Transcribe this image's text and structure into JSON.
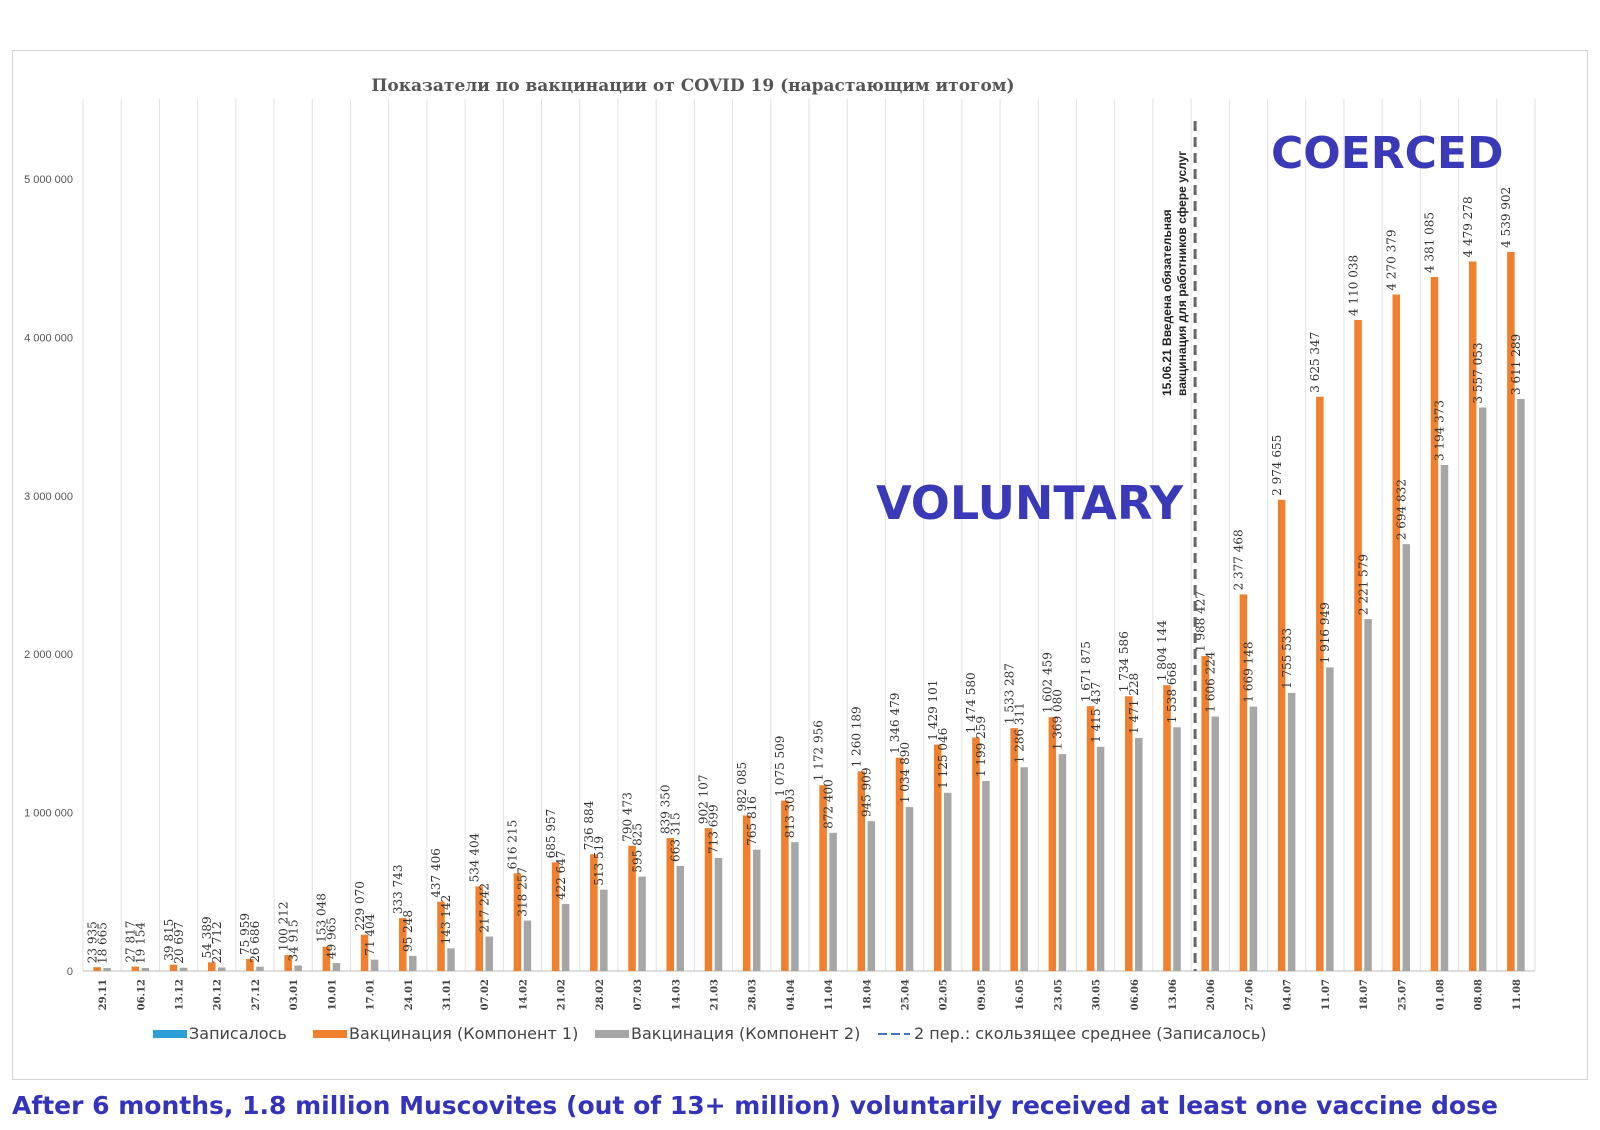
{
  "chart_data": {
    "type": "bar",
    "title": "Показатели по вакцинации от COVID 19 (нарастающим итогом)",
    "xlabel": "",
    "ylabel": "",
    "ylim": [
      0,
      5500000
    ],
    "y_ticks": [
      0,
      1000000,
      2000000,
      3000000,
      4000000,
      5000000
    ],
    "y_tick_labels": [
      "0",
      "1 000 000",
      "2 000 000",
      "3 000 000",
      "4 000 000",
      "5 000 000"
    ],
    "grid": "vertical",
    "legend_position": "bottom",
    "categories": [
      "29.11",
      "06.12",
      "13.12",
      "20.12",
      "27.12",
      "03.01",
      "10.01",
      "17.01",
      "24.01",
      "31.01",
      "07.02",
      "14.02",
      "21.02",
      "28.02",
      "07.03",
      "14.03",
      "21.03",
      "28.03",
      "04.04",
      "11.04",
      "18.04",
      "25.04",
      "02.05",
      "09.05",
      "16.05",
      "23.05",
      "30.05",
      "06.06",
      "13.06",
      "20.06",
      "27.06",
      "04.07",
      "11.07",
      "18.07",
      "25.07",
      "01.08",
      "08.08",
      "11.08"
    ],
    "series": [
      {
        "name": "Вакцинация (Компонент 1)",
        "color": "#f07f2e",
        "values": [
          23935,
          27817,
          39815,
          54389,
          75959,
          100212,
          153048,
          229070,
          333743,
          437406,
          534404,
          616215,
          685957,
          736884,
          790473,
          839350,
          902107,
          982085,
          1075509,
          1172956,
          1260189,
          1346479,
          1429101,
          1474580,
          1533287,
          1602459,
          1671875,
          1734586,
          1804144,
          1988427,
          2377468,
          2974655,
          3625347,
          4110038,
          4270379,
          4381085,
          4479278,
          4539902
        ],
        "labels": [
          "23 935",
          "27 817",
          "39 815",
          "54 389",
          "75 959",
          "100 212",
          "153 048",
          "229 070",
          "333 743",
          "437 406",
          "534 404",
          "616 215",
          "685 957",
          "736 884",
          "790 473",
          "839 350",
          "902 107",
          "982 085",
          "1 075 509",
          "1 172 956",
          "1 260 189",
          "1 346 479",
          "1 429 101",
          "1 474 580",
          "1 533 287",
          "1 602 459",
          "1 671 875",
          "1 734 586",
          "1 804 144",
          "1 988 427",
          "2 377 468",
          "2 974 655",
          "3 625 347",
          "4 110 038",
          "4 270 379",
          "4 381 085",
          "4 479 278",
          "4 539 902"
        ]
      },
      {
        "name": "Вакцинация (Компонент 2)",
        "color": "#a6a6a6",
        "values": [
          18665,
          19154,
          20697,
          22712,
          26686,
          34915,
          49965,
          71404,
          95248,
          143142,
          217242,
          318257,
          422647,
          513519,
          595825,
          663315,
          713699,
          765816,
          813303,
          872400,
          945909,
          1034890,
          1125046,
          1199259,
          1286311,
          1369080,
          1415437,
          1471228,
          1538668,
          1606224,
          1669148,
          1755533,
          1916949,
          2221579,
          2694832,
          3194373,
          3557053,
          3611289
        ],
        "labels": [
          "18 665",
          "19 154",
          "20 697",
          "22 712",
          "26 686",
          "34 915",
          "49 965",
          "71 404",
          "95 248",
          "143 142",
          "217 242",
          "318 257",
          "422 647",
          "513 519",
          "595 825",
          "663 315",
          "713 699",
          "765 816",
          "813 303",
          "872 400",
          "945 909",
          "1 034 890",
          "1 125 046",
          "1 199 259",
          "1 286 311",
          "1 369 080",
          "1 415 437",
          "1 471 228",
          "1 538 668",
          "1 606 224",
          "1 669 148",
          "1 755 533",
          "1 916 949",
          "2 221 579",
          "2 694 832",
          "3 194 373",
          "3 557 053",
          "3 611 289"
        ]
      }
    ],
    "legend": [
      {
        "name": "Записалось",
        "color": "#2a9fd8",
        "kind": "bar"
      },
      {
        "name": "Вакцинация (Компонент 1)",
        "color": "#f07f2e",
        "kind": "bar"
      },
      {
        "name": "Вакцинация (Компонент 2)",
        "color": "#a6a6a6",
        "kind": "bar"
      },
      {
        "name": "2 пер.: скользящее среднее (Записалось)",
        "color": "#4472c4",
        "kind": "dashed-line"
      }
    ],
    "annotation": {
      "line1": "15.06.21 Введена обязательная",
      "line2": "вакцинация для работников сфере услуг",
      "position_between": [
        "13.06",
        "20.06"
      ]
    },
    "overlay_labels": {
      "voluntary": "VOLUNTARY",
      "coerced": "COERCED"
    }
  },
  "caption": "After 6 months, 1.8 million Muscovites (out of 13+ million) voluntarily received at least one vaccine dose"
}
